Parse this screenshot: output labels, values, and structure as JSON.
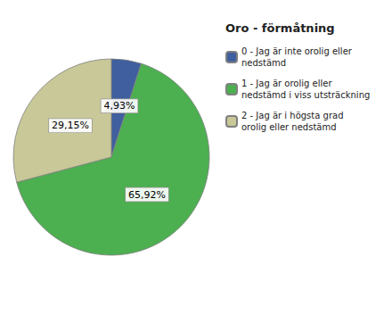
{
  "chart_data": {
    "type": "pie",
    "title": "Oro - förmåtning",
    "categories": [
      "0 - Jag är inte orolig eller\nnedstämd",
      "1 - Jag är orolig eller\nnedstämd i viss utsträckning",
      "2 - Jag är i högsta grad\norolig eller nedstämd"
    ],
    "values": [
      4.93,
      65.92,
      29.15
    ],
    "value_labels": [
      "4,93%",
      "65,92%",
      "29,15%"
    ],
    "colors": [
      "#3f5f9e",
      "#4caf50",
      "#c8c898"
    ],
    "data_labels": true,
    "legend": "upper right"
  }
}
